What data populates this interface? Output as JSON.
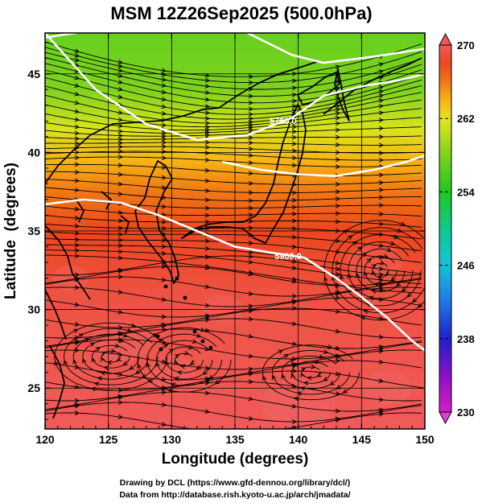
{
  "chart_data": {
    "type": "heatmap",
    "title": "MSM 12Z26Sep2025 (500.0hPa)",
    "xlabel": "Longitude (degrees)",
    "ylabel": "Latitude  (degrees)",
    "xlim": [
      120,
      150
    ],
    "ylim": [
      22.4,
      47.6
    ],
    "x_ticks": [
      "120",
      "125",
      "130",
      "135",
      "140",
      "145",
      "150"
    ],
    "y_ticks": [
      "25",
      "30",
      "35",
      "40",
      "45"
    ],
    "colorbar": {
      "min": 230,
      "max": 270,
      "ticks": [
        "230",
        "238",
        "246",
        "254",
        "262",
        "270"
      ],
      "stops": [
        {
          "value": 230,
          "color": "#d81ec8"
        },
        {
          "value": 234,
          "color": "#8a10c8"
        },
        {
          "value": 238,
          "color": "#1f1fcf"
        },
        {
          "value": 242,
          "color": "#1e78e6"
        },
        {
          "value": 246,
          "color": "#12c4d8"
        },
        {
          "value": 250,
          "color": "#10c890"
        },
        {
          "value": 254,
          "color": "#1ec81e"
        },
        {
          "value": 258,
          "color": "#7ed21e"
        },
        {
          "value": 262,
          "color": "#e6e61e"
        },
        {
          "value": 264,
          "color": "#f6b414"
        },
        {
          "value": 266,
          "color": "#f07814"
        },
        {
          "value": 268,
          "color": "#ec461e"
        },
        {
          "value": 270,
          "color": "#f05a5a"
        }
      ]
    },
    "field_color_points": [
      {
        "lat": 47.6,
        "value": 257
      },
      {
        "lat": 44.0,
        "value": 258
      },
      {
        "lat": 41.5,
        "value": 261.5
      },
      {
        "lat": 39.5,
        "value": 264
      },
      {
        "lat": 37.5,
        "value": 266
      },
      {
        "lat": 35.0,
        "value": 268
      },
      {
        "lat": 31.0,
        "value": 269.2
      },
      {
        "lat": 22.4,
        "value": 270
      }
    ],
    "contours": [
      {
        "label": "5760.0",
        "label_at": [
          138.8,
          41.8
        ],
        "points": [
          [
            120,
            47.6
          ],
          [
            124,
            44
          ],
          [
            128,
            41.8
          ],
          [
            132,
            40.8
          ],
          [
            136,
            41.1
          ],
          [
            139.5,
            42.2
          ],
          [
            142,
            43.6
          ],
          [
            145,
            44.2
          ],
          [
            148,
            44.6
          ],
          [
            150,
            45
          ]
        ]
      },
      {
        "label": "",
        "points": [
          [
            136,
            47.6
          ],
          [
            139.5,
            46.2
          ],
          [
            142,
            45.7
          ],
          [
            146,
            46.1
          ],
          [
            150,
            46.6
          ]
        ]
      },
      {
        "label": "",
        "points": [
          [
            120,
            47.3
          ],
          [
            121.5,
            47.5
          ],
          [
            122.5,
            47.6
          ]
        ]
      },
      {
        "label": "",
        "points": [
          [
            134,
            39.4
          ],
          [
            137,
            38.9
          ],
          [
            140,
            38.6
          ],
          [
            143,
            38.5
          ],
          [
            146,
            38.9
          ],
          [
            148.5,
            39.4
          ],
          [
            150,
            39.8
          ]
        ]
      },
      {
        "label": "5900.0",
        "label_at": [
          139.2,
          33.2
        ],
        "points": [
          [
            120,
            36.7
          ],
          [
            123,
            37
          ],
          [
            126,
            36.8
          ],
          [
            129,
            36
          ],
          [
            132,
            35
          ],
          [
            135,
            34
          ],
          [
            138,
            33.6
          ],
          [
            140.5,
            33.3
          ],
          [
            143,
            32
          ],
          [
            145,
            30.8
          ],
          [
            147,
            29.5
          ],
          [
            149,
            28
          ],
          [
            150,
            27.4
          ]
        ]
      }
    ],
    "grid": true,
    "credits": [
      "Drawing by DCL (https://www.gfd-dennou.org/library/dcl/)",
      "Data from http://database.rish.kyoto-u.ac.jp/arch/jmadata/"
    ]
  }
}
